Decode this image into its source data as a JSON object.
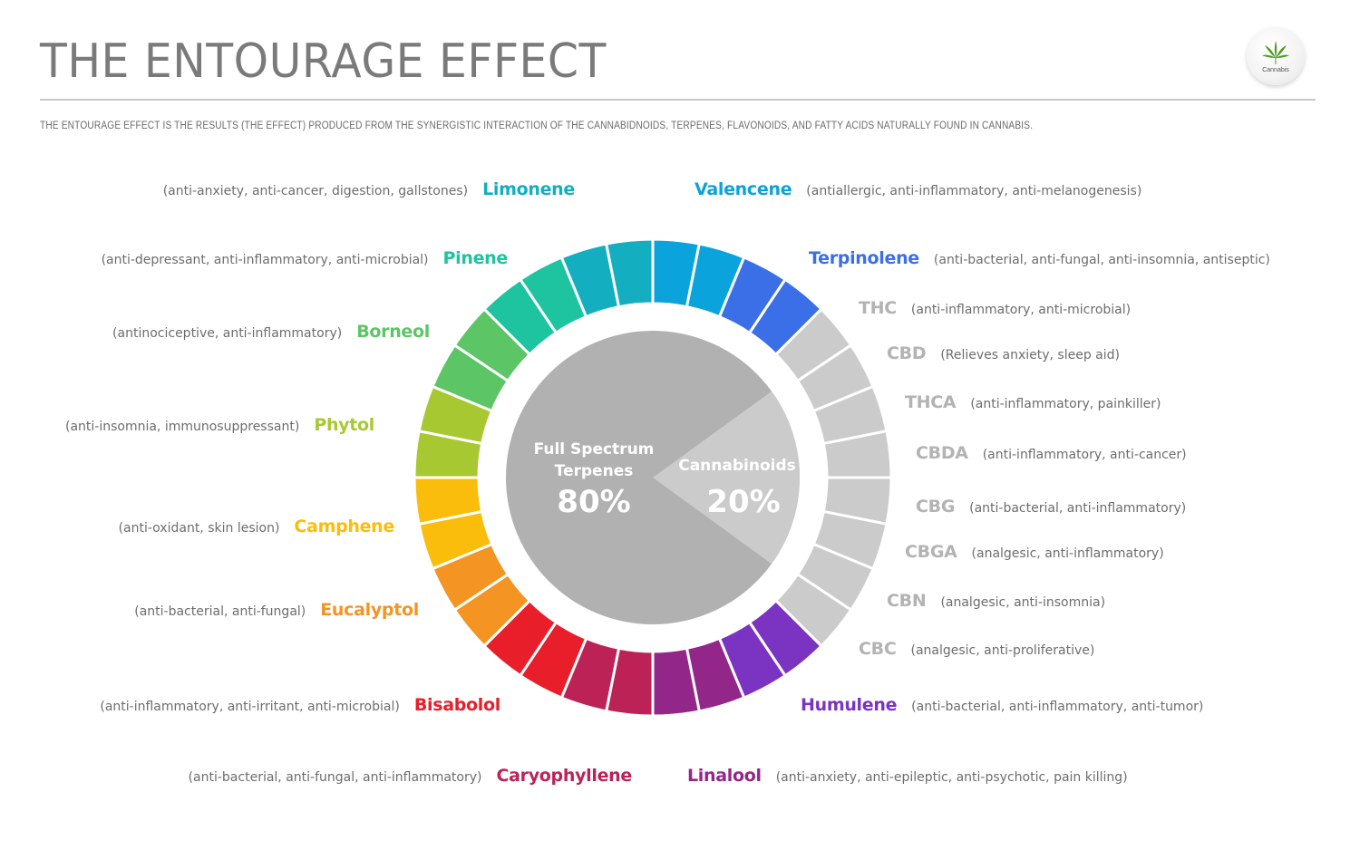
{
  "header": {
    "title": "THE ENTOURAGE EFFECT",
    "subtitle": "THE ENTOURAGE EFFECT IS THE RESULTS (THE EFFECT) PRODUCED FROM THE SYNERGISTIC INTERACTION OF THE CANNABIDNOIDS, TERPENES, FLAVONOIDS, AND FATTY ACIDS NATURALLY FOUND IN CANNABIS.",
    "logo_text": "Cannabis",
    "logo_icon": "cannabis-leaf-icon"
  },
  "center": {
    "terpenes_label_line1": "Full Spectrum",
    "terpenes_label_line2": "Terpenes",
    "terpenes_value": "80%",
    "cannabinoids_label": "Cannabinoids",
    "cannabinoids_value": "20%"
  },
  "compounds": {
    "limonene": {
      "name": "Limonene",
      "desc": "(anti-anxiety, anti-cancer, digestion, gallstones)",
      "color": "#13afc0"
    },
    "valencene": {
      "name": "Valencene",
      "desc": "(antiallergic, anti-inflammatory, anti-melanogenesis)",
      "color": "#0aa3db"
    },
    "pinene": {
      "name": "Pinene",
      "desc": "(anti-depressant, anti-inflammatory, anti-microbial)",
      "color": "#1ec4a0"
    },
    "terpinolene": {
      "name": "Terpinolene",
      "desc": "(anti-bacterial, anti-fungal, anti-insomnia, antiseptic)",
      "color": "#3b6fe8"
    },
    "borneol": {
      "name": "Borneol",
      "desc": "(antinociceptive, anti-inflammatory)",
      "color": "#5cc565"
    },
    "thc": {
      "name": "THC",
      "desc": "(anti-inflammatory, anti-microbial)",
      "color": "#b3b3b3"
    },
    "cbd": {
      "name": "CBD",
      "desc": "(Relieves anxiety, sleep aid)",
      "color": "#b3b3b3"
    },
    "phytol": {
      "name": "Phytol",
      "desc": "(anti-insomnia, immunosuppressant)",
      "color": "#a8c832"
    },
    "thca": {
      "name": "THCA",
      "desc": "(anti-inflammatory, painkiller)",
      "color": "#b3b3b3"
    },
    "cbda": {
      "name": "CBDA",
      "desc": "(anti-inflammatory, anti-cancer)",
      "color": "#b3b3b3"
    },
    "camphene": {
      "name": "Camphene",
      "desc": "(anti-oxidant, skin lesion)",
      "color": "#fbbd0b"
    },
    "cbg": {
      "name": "CBG",
      "desc": "(anti-bacterial, anti-inflammatory)",
      "color": "#b3b3b3"
    },
    "cbga": {
      "name": "CBGA",
      "desc": "(analgesic, anti-inflammatory)",
      "color": "#b3b3b3"
    },
    "eucalyptol": {
      "name": "Eucalyptol",
      "desc": "(anti-bacterial, anti-fungal)",
      "color": "#f39423"
    },
    "cbn": {
      "name": "CBN",
      "desc": "(analgesic, anti-insomnia)",
      "color": "#b3b3b3"
    },
    "cbc": {
      "name": "CBC",
      "desc": "(analgesic, anti-proliferative)",
      "color": "#b3b3b3"
    },
    "bisabolol": {
      "name": "Bisabolol",
      "desc": "(anti-inflammatory, anti-irritant, anti-microbial)",
      "color": "#e81e2a"
    },
    "humulene": {
      "name": "Humulene",
      "desc": "(anti-bacterial, anti-inflammatory, anti-tumor)",
      "color": "#7b33c2"
    },
    "caryophyllene": {
      "name": "Caryophyllene",
      "desc": "(anti-bacterial, anti-fungal, anti-inflammatory)",
      "color": "#bd2257"
    },
    "linalool": {
      "name": "Linalool",
      "desc": "(anti-anxiety, anti-epileptic, anti-psychotic, pain killing)",
      "color": "#922689"
    }
  },
  "chart_data": {
    "type": "pie",
    "title": "THE ENTOURAGE EFFECT",
    "inner_pie": {
      "categories": [
        "Full Spectrum Terpenes",
        "Cannabinoids"
      ],
      "values": [
        80,
        20
      ],
      "colors": [
        "#b1b1b1",
        "#cbcbcb"
      ]
    },
    "outer_ring": {
      "segment_count": 32,
      "segments_clockwise_from_top": [
        {
          "group": "Valencene",
          "count": 2,
          "color": "#0aa3db"
        },
        {
          "group": "Terpinolene",
          "count": 2,
          "color": "#3b6fe8"
        },
        {
          "group": "Cannabinoids (THC, CBD, THCA, CBDA, CBG, CBGA, CBN, CBC)",
          "count": 8,
          "color": "#cbcbcb"
        },
        {
          "group": "Humulene",
          "count": 2,
          "color": "#7b33c2"
        },
        {
          "group": "Linalool",
          "count": 2,
          "color": "#922689"
        },
        {
          "group": "Caryophyllene",
          "count": 2,
          "color": "#bd2257"
        },
        {
          "group": "Bisabolol",
          "count": 2,
          "color": "#e81e2a"
        },
        {
          "group": "Eucalyptol",
          "count": 2,
          "color": "#f39423"
        },
        {
          "group": "Camphene",
          "count": 2,
          "color": "#fbbd0b"
        },
        {
          "group": "Phytol",
          "count": 2,
          "color": "#a8c832"
        },
        {
          "group": "Borneol",
          "count": 2,
          "color": "#5cc565"
        },
        {
          "group": "Pinene",
          "count": 2,
          "color": "#1ec4a0"
        },
        {
          "group": "Limonene",
          "count": 2,
          "color": "#13afc0"
        }
      ]
    },
    "legend_position": "labels around ring"
  }
}
